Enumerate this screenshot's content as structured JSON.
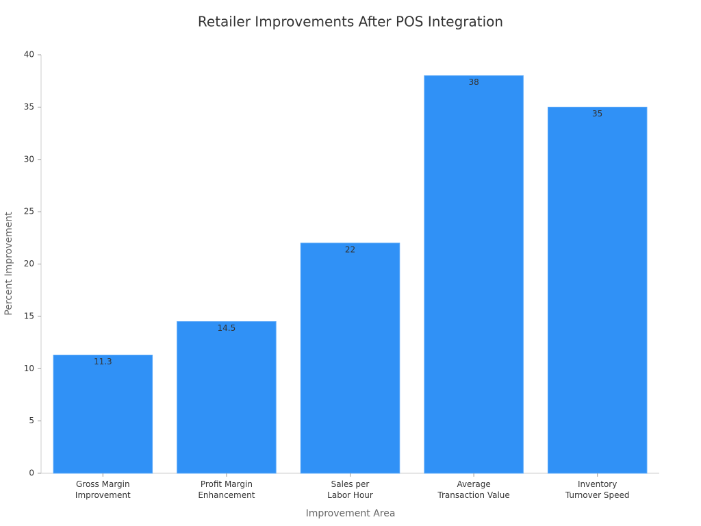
{
  "chart_data": {
    "type": "bar",
    "title": "Retailer Improvements After POS Integration",
    "x_label": "Improvement Area",
    "y_label": "Percent Improvement",
    "categories": [
      "Gross Margin\nImprovement",
      "Profit Margin\nEnhancement",
      "Sales per\nLabor Hour",
      "Average\nTransaction Value",
      "Inventory\nTurnover Speed"
    ],
    "values": [
      11.3,
      14.5,
      22,
      38,
      35
    ],
    "color": "#3091f6",
    "ylim": [
      0,
      40
    ],
    "yticks": [
      0,
      5,
      10,
      15,
      20,
      25,
      30,
      35,
      40
    ],
    "grid": false
  }
}
